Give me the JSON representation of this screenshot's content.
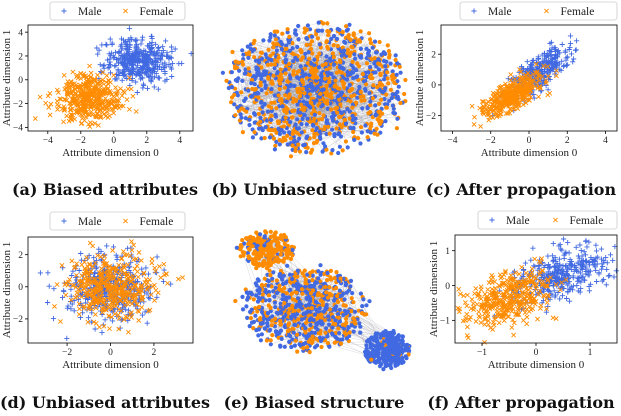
{
  "colors": {
    "male": "#4169e1",
    "female": "#ff8c00",
    "edge": "#9a9aa8"
  },
  "legend": {
    "male": "Male",
    "female": "Female"
  },
  "chart_data": [
    {
      "id": "a",
      "type": "scatter",
      "caption": "(a) Biased attributes",
      "xlabel": "Attribute dimension 0",
      "ylabel": "Attribute dimension 1",
      "xlim": [
        -5.2,
        4.8
      ],
      "ylim": [
        -4.3,
        4.6
      ],
      "xticks": [
        -4,
        -2,
        0,
        2,
        4
      ],
      "yticks": [
        -4,
        -2,
        0,
        2,
        4
      ],
      "series": [
        {
          "name": "Male",
          "marker": "plus",
          "center": [
            1.5,
            1.6
          ],
          "spread": [
            1.0,
            0.9
          ],
          "corr": 0.0,
          "n": 420
        },
        {
          "name": "Female",
          "marker": "x",
          "center": [
            -1.5,
            -1.5
          ],
          "spread": [
            1.0,
            0.95
          ],
          "corr": 0.0,
          "n": 420
        }
      ]
    },
    {
      "id": "b",
      "type": "network",
      "caption": "(b) Unbiased structure",
      "clusters": [
        {
          "center": [
            0.5,
            0.5
          ],
          "radius": [
            0.46,
            0.4
          ],
          "female_share": 0.5,
          "n": 1250
        }
      ]
    },
    {
      "id": "c",
      "type": "scatter",
      "caption": "(c) After propagation",
      "xlabel": "Attribute dimension 0",
      "ylabel": "Attribute dimension 1",
      "xlim": [
        -4.6,
        4.6
      ],
      "ylim": [
        -3.0,
        3.9
      ],
      "xticks": [
        -4,
        -2,
        0,
        2,
        4
      ],
      "yticks": [
        -2,
        0,
        2
      ],
      "series": [
        {
          "name": "Male",
          "marker": "plus",
          "center": [
            0.5,
            0.8
          ],
          "spread": [
            0.8,
            0.85
          ],
          "corr": 0.75,
          "n": 340
        },
        {
          "name": "Female",
          "marker": "x",
          "center": [
            -0.8,
            -0.7
          ],
          "spread": [
            0.8,
            0.75
          ],
          "corr": 0.75,
          "n": 380
        }
      ]
    },
    {
      "id": "d",
      "type": "scatter",
      "caption": "(d) Unbiased attributes",
      "xlabel": "Attribute dimension 0",
      "ylabel": "Attribute dimension 1",
      "xlim": [
        -3.8,
        3.8
      ],
      "ylim": [
        -3.5,
        3.1
      ],
      "xticks": [
        -2,
        0,
        2
      ],
      "yticks": [
        -2,
        0,
        2
      ],
      "series": [
        {
          "name": "Male",
          "marker": "plus",
          "center": [
            0.0,
            0.0
          ],
          "spread": [
            1.0,
            1.0
          ],
          "corr": 0.0,
          "n": 420
        },
        {
          "name": "Female",
          "marker": "x",
          "center": [
            0.0,
            0.0
          ],
          "spread": [
            1.0,
            1.0
          ],
          "corr": 0.0,
          "n": 420
        }
      ]
    },
    {
      "id": "e",
      "type": "network",
      "caption": "(e) Biased structure",
      "clusters": [
        {
          "center": [
            0.23,
            0.14
          ],
          "radius": [
            0.15,
            0.12
          ],
          "female_share": 0.85,
          "n": 230
        },
        {
          "center": [
            0.44,
            0.53
          ],
          "radius": [
            0.33,
            0.28
          ],
          "female_share": 0.45,
          "n": 750
        },
        {
          "center": [
            0.87,
            0.8
          ],
          "radius": [
            0.12,
            0.12
          ],
          "female_share": 0.04,
          "n": 280
        }
      ]
    },
    {
      "id": "f",
      "type": "scatter",
      "caption": "(f) After propagation",
      "xlabel": "Attribute dimension 0",
      "ylabel": "Attribute dimension 1",
      "xlim": [
        -1.5,
        1.5
      ],
      "ylim": [
        -1.65,
        1.45
      ],
      "xticks": [
        -1,
        0,
        1
      ],
      "yticks": [
        -1,
        0,
        1
      ],
      "series": [
        {
          "name": "Male",
          "marker": "plus",
          "center": [
            0.45,
            0.3
          ],
          "spread": [
            0.45,
            0.4
          ],
          "corr": 0.5,
          "n": 380
        },
        {
          "name": "Female",
          "marker": "x",
          "center": [
            -0.5,
            -0.35
          ],
          "spread": [
            0.4,
            0.4
          ],
          "corr": 0.45,
          "n": 380
        }
      ]
    }
  ]
}
